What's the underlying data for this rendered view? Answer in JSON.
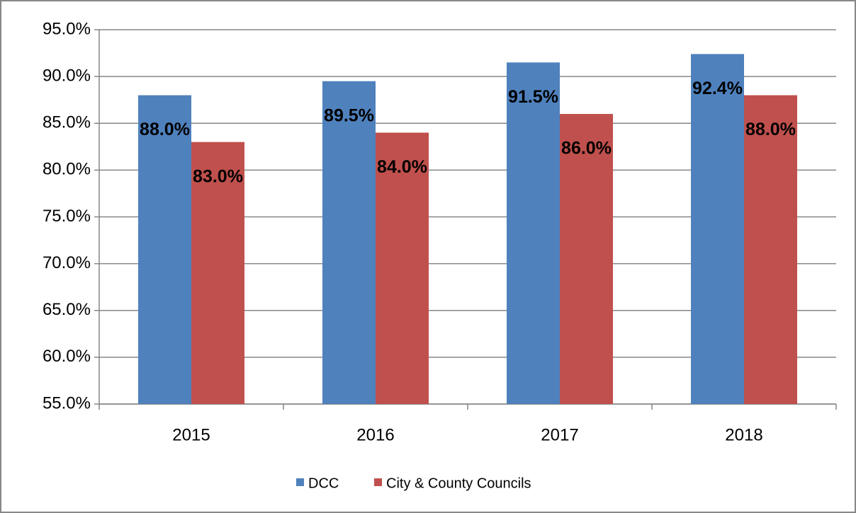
{
  "chart_data": {
    "type": "bar",
    "categories": [
      "2015",
      "2016",
      "2017",
      "2018"
    ],
    "series": [
      {
        "name": "DCC",
        "color": "#4f81bd",
        "values": [
          88.0,
          89.5,
          91.5,
          92.4
        ],
        "value_labels": [
          "88.0%",
          "89.5%",
          "91.5%",
          "92.4%"
        ]
      },
      {
        "name": "City & County Councils",
        "color": "#c0504d",
        "values": [
          83.0,
          84.0,
          86.0,
          88.0
        ],
        "value_labels": [
          "83.0%",
          "84.0%",
          "86.0%",
          "88.0%"
        ]
      }
    ],
    "ylim": [
      55,
      95
    ],
    "yticks": [
      {
        "value": 55,
        "label": "55.0%"
      },
      {
        "value": 60,
        "label": "60.0%"
      },
      {
        "value": 65,
        "label": "65.0%"
      },
      {
        "value": 70,
        "label": "70.0%"
      },
      {
        "value": 75,
        "label": "75.0%"
      },
      {
        "value": 80,
        "label": "80.0%"
      },
      {
        "value": 85,
        "label": "85.0%"
      },
      {
        "value": 90,
        "label": "90.0%"
      },
      {
        "value": 95,
        "label": "95.0%"
      }
    ],
    "grid": true,
    "legend": "bottom"
  }
}
